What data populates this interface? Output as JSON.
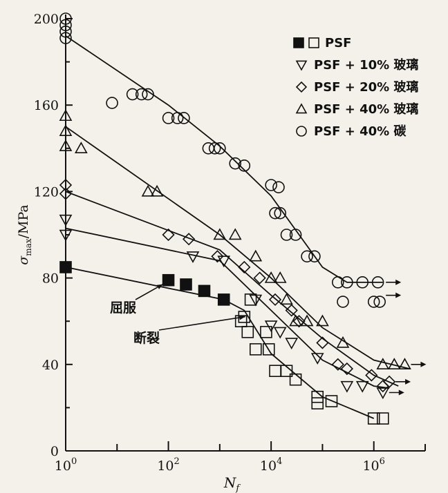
{
  "chart_data": {
    "type": "scatter",
    "xscale": "log",
    "xlim": [
      1,
      10000000
    ],
    "ylim": [
      0,
      200
    ],
    "x_ticks": [
      {
        "value": 1,
        "base": "10",
        "exp": "0"
      },
      {
        "value": 100,
        "base": "10",
        "exp": "2"
      },
      {
        "value": 10000,
        "base": "10",
        "exp": "4"
      },
      {
        "value": 1000000,
        "base": "10",
        "exp": "6"
      }
    ],
    "y_ticks": [
      {
        "value": 0,
        "label": "0"
      },
      {
        "value": 40,
        "label": "40"
      },
      {
        "value": 80,
        "label": "80"
      },
      {
        "value": 120,
        "label": "120"
      },
      {
        "value": 160,
        "label": "160"
      },
      {
        "value": 200,
        "label": "200"
      }
    ],
    "xlabel": "N",
    "xlabel_sub": "f",
    "ylabel": "σ",
    "ylabel_sub": "max",
    "ylabel_unit": "/MPa",
    "legend_position": "top-right",
    "series": [
      {
        "name": "PSF",
        "filled_label": "■",
        "marker": "square",
        "color": "#111111",
        "filled": [
          [
            1,
            85
          ],
          [
            100,
            79
          ],
          [
            220,
            77
          ],
          [
            500,
            74
          ],
          [
            1200,
            70
          ]
        ],
        "open": [
          [
            4000,
            70
          ],
          [
            3000,
            62
          ],
          [
            2600,
            60
          ],
          [
            3500,
            55
          ],
          [
            8000,
            55
          ],
          [
            5000,
            47
          ],
          [
            9000,
            47
          ],
          [
            12000,
            37
          ],
          [
            20000,
            37
          ],
          [
            30000,
            33
          ],
          [
            80000,
            25
          ],
          [
            80000,
            22
          ],
          [
            150000,
            23
          ],
          [
            1000000,
            15
          ],
          [
            1500000,
            15
          ]
        ],
        "fit": [
          [
            1,
            85
          ],
          [
            1200,
            70
          ],
          [
            3000,
            65
          ],
          [
            10000,
            45
          ],
          [
            100000,
            25
          ],
          [
            1000000,
            15
          ]
        ],
        "arrow_points": []
      },
      {
        "name": "PSF + 10% 玻璃",
        "marker": "triangle-down",
        "color": "#111111",
        "filled": [],
        "open": [
          [
            1,
            107
          ],
          [
            1,
            100
          ],
          [
            300,
            90
          ],
          [
            1200,
            88
          ],
          [
            5000,
            70
          ],
          [
            10000,
            58
          ],
          [
            15000,
            55
          ],
          [
            25000,
            50
          ],
          [
            80000,
            43
          ],
          [
            300000,
            30
          ],
          [
            600000,
            30
          ],
          [
            1500000,
            27
          ]
        ],
        "fit": [
          [
            1,
            103
          ],
          [
            1000,
            88
          ],
          [
            10000,
            65
          ],
          [
            100000,
            42
          ],
          [
            1000000,
            30
          ],
          [
            2000000,
            29
          ]
        ],
        "arrow_points": [
          [
            1500000,
            27
          ]
        ]
      },
      {
        "name": "PSF + 20% 玻璃",
        "marker": "diamond",
        "color": "#111111",
        "filled": [],
        "open": [
          [
            1,
            123
          ],
          [
            1,
            119
          ],
          [
            100,
            100
          ],
          [
            250,
            98
          ],
          [
            900,
            90
          ],
          [
            3000,
            85
          ],
          [
            6000,
            80
          ],
          [
            12000,
            70
          ],
          [
            25000,
            65
          ],
          [
            35000,
            60
          ],
          [
            100000,
            50
          ],
          [
            200000,
            40
          ],
          [
            300000,
            38
          ],
          [
            900000,
            35
          ],
          [
            1500000,
            30
          ],
          [
            2000000,
            32
          ]
        ],
        "fit": [
          [
            1,
            120
          ],
          [
            1000,
            93
          ],
          [
            10000,
            72
          ],
          [
            100000,
            52
          ],
          [
            1000000,
            35
          ],
          [
            3000000,
            30
          ]
        ],
        "arrow_points": [
          [
            2000000,
            32
          ]
        ]
      },
      {
        "name": "PSF + 40% 玻璃",
        "marker": "triangle-up",
        "color": "#111111",
        "filled": [],
        "open": [
          [
            1,
            155
          ],
          [
            1,
            148
          ],
          [
            1,
            141
          ],
          [
            2,
            140
          ],
          [
            40,
            120
          ],
          [
            60,
            120
          ],
          [
            1000,
            100
          ],
          [
            2000,
            100
          ],
          [
            5000,
            90
          ],
          [
            10000,
            80
          ],
          [
            15000,
            80
          ],
          [
            20000,
            70
          ],
          [
            30000,
            60
          ],
          [
            50000,
            60
          ],
          [
            100000,
            60
          ],
          [
            250000,
            50
          ],
          [
            1500000,
            40
          ],
          [
            2500000,
            40
          ],
          [
            4000000,
            40
          ]
        ],
        "fit": [
          [
            1,
            150
          ],
          [
            1000,
            100
          ],
          [
            10000,
            80
          ],
          [
            100000,
            57
          ],
          [
            1000000,
            42
          ],
          [
            5000000,
            38
          ]
        ],
        "arrow_points": [
          [
            4000000,
            40
          ]
        ]
      },
      {
        "name": "PSF + 40% 碳",
        "marker": "circle",
        "color": "#111111",
        "filled": [],
        "open": [
          [
            1,
            200
          ],
          [
            1,
            197
          ],
          [
            1,
            194
          ],
          [
            1,
            191
          ],
          [
            8,
            161
          ],
          [
            20,
            165
          ],
          [
            30,
            165
          ],
          [
            40,
            165
          ],
          [
            100,
            154
          ],
          [
            150,
            154
          ],
          [
            200,
            154
          ],
          [
            600,
            140
          ],
          [
            800,
            140
          ],
          [
            1000,
            140
          ],
          [
            2000,
            133
          ],
          [
            3000,
            132
          ],
          [
            10000,
            123
          ],
          [
            14000,
            122
          ],
          [
            12000,
            110
          ],
          [
            15000,
            110
          ],
          [
            20000,
            100
          ],
          [
            30000,
            100
          ],
          [
            50000,
            90
          ],
          [
            70000,
            90
          ],
          [
            200000,
            78
          ],
          [
            300000,
            78
          ],
          [
            600000,
            78
          ],
          [
            1200000,
            78
          ],
          [
            250000,
            69
          ],
          [
            1000000,
            69
          ],
          [
            1300000,
            69
          ]
        ],
        "fit": [
          [
            1,
            192
          ],
          [
            100,
            160
          ],
          [
            1000,
            141
          ],
          [
            10000,
            118
          ],
          [
            100000,
            85
          ],
          [
            300000,
            78
          ],
          [
            1500000,
            78
          ]
        ],
        "arrow_points": [
          [
            1300000,
            78
          ],
          [
            1300000,
            72
          ]
        ]
      }
    ],
    "annotations": [
      {
        "text": "屈服",
        "target": [
          100,
          79
        ]
      },
      {
        "text": "断裂",
        "target": [
          4000,
          64
        ]
      }
    ]
  }
}
